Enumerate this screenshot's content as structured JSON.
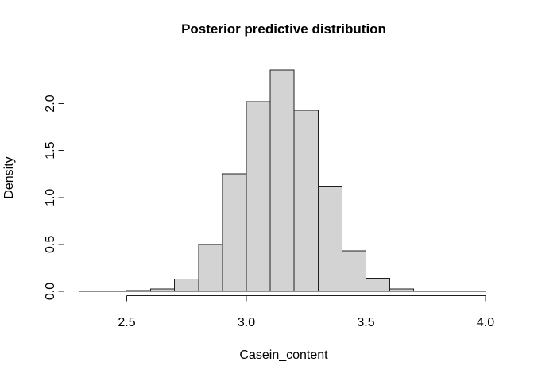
{
  "chart_data": {
    "type": "bar",
    "subtype": "histogram",
    "title": "Posterior predictive distribution",
    "xlabel": "Casein_content",
    "ylabel": "Density",
    "bin_start": 2.3,
    "bin_width": 0.1,
    "bin_edges": [
      2.3,
      2.4,
      2.5,
      2.6,
      2.7,
      2.8,
      2.9,
      3.0,
      3.1,
      3.2,
      3.3,
      3.4,
      3.5,
      3.6,
      3.7,
      3.8,
      3.9,
      4.0
    ],
    "densities": [
      0.002,
      0.004,
      0.01,
      0.025,
      0.13,
      0.5,
      1.25,
      2.02,
      2.36,
      1.93,
      1.12,
      0.43,
      0.14,
      0.025,
      0.005,
      0.003,
      0.002
    ],
    "x_ticks": [
      2.5,
      3.0,
      3.5,
      4.0
    ],
    "x_tick_labels": [
      "2.5",
      "3.0",
      "3.5",
      "4.0"
    ],
    "y_ticks": [
      0.0,
      0.5,
      1.0,
      1.5,
      2.0
    ],
    "y_tick_labels": [
      "0.0",
      "0.5",
      "1.0",
      "1.5",
      "2.0"
    ],
    "xlim": [
      2.3,
      4.0
    ],
    "ylim": [
      0,
      2.36
    ],
    "grid": false,
    "legend": null,
    "bar_fill": "#d3d3d3",
    "bar_stroke": "#1f1f1f",
    "axis_color": "#1f1f1f",
    "background": "#ffffff"
  }
}
